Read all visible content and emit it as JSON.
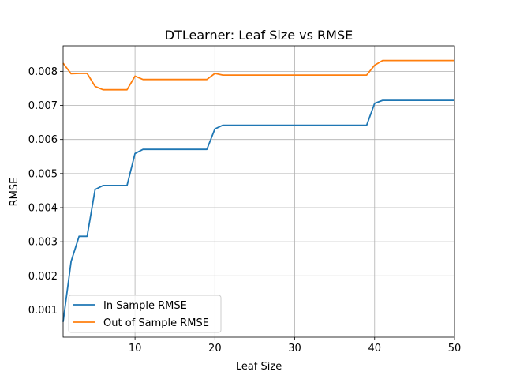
{
  "chart_data": {
    "type": "line",
    "title": "DTLearner: Leaf Size vs RMSE",
    "xlabel": "Leaf Size",
    "ylabel": "RMSE",
    "xlim": [
      1,
      50
    ],
    "ylim": [
      0.0002,
      0.00875
    ],
    "xticks": [
      10,
      20,
      30,
      40,
      50
    ],
    "yticks": [
      0.001,
      0.002,
      0.003,
      0.004,
      0.005,
      0.006,
      0.007,
      0.008
    ],
    "ytick_labels": [
      "0.001",
      "0.002",
      "0.003",
      "0.004",
      "0.005",
      "0.006",
      "0.007",
      "0.008"
    ],
    "grid": true,
    "legend_position": "lower-left",
    "x": [
      1,
      2,
      3,
      4,
      5,
      6,
      7,
      8,
      9,
      10,
      11,
      12,
      13,
      14,
      15,
      16,
      17,
      18,
      19,
      20,
      21,
      22,
      23,
      24,
      25,
      26,
      27,
      28,
      29,
      30,
      31,
      32,
      33,
      34,
      35,
      36,
      37,
      38,
      39,
      40,
      41,
      42,
      43,
      44,
      45,
      46,
      47,
      48,
      49,
      50
    ],
    "series": [
      {
        "name": "In Sample RMSE",
        "color": "#1f77b4",
        "values": [
          0.00065,
          0.00242,
          0.00316,
          0.00316,
          0.00453,
          0.00465,
          0.00465,
          0.00465,
          0.00465,
          0.00559,
          0.00571,
          0.00571,
          0.00571,
          0.00571,
          0.00571,
          0.00571,
          0.00571,
          0.00571,
          0.00571,
          0.00631,
          0.00642,
          0.00642,
          0.00642,
          0.00642,
          0.00642,
          0.00642,
          0.00642,
          0.00642,
          0.00642,
          0.00642,
          0.00642,
          0.00642,
          0.00642,
          0.00642,
          0.00642,
          0.00642,
          0.00642,
          0.00642,
          0.00642,
          0.00706,
          0.00715,
          0.00715,
          0.00715,
          0.00715,
          0.00715,
          0.00715,
          0.00715,
          0.00715,
          0.00715,
          0.00715
        ]
      },
      {
        "name": "Out of Sample RMSE",
        "color": "#ff7f0e",
        "values": [
          0.00824,
          0.00793,
          0.00794,
          0.00794,
          0.00756,
          0.00746,
          0.00746,
          0.00746,
          0.00746,
          0.00786,
          0.00776,
          0.00776,
          0.00776,
          0.00776,
          0.00776,
          0.00776,
          0.00776,
          0.00776,
          0.00776,
          0.00794,
          0.00789,
          0.00789,
          0.00789,
          0.00789,
          0.00789,
          0.00789,
          0.00789,
          0.00789,
          0.00789,
          0.00789,
          0.00789,
          0.00789,
          0.00789,
          0.00789,
          0.00789,
          0.00789,
          0.00789,
          0.00789,
          0.00789,
          0.00818,
          0.00832,
          0.00832,
          0.00832,
          0.00832,
          0.00832,
          0.00832,
          0.00832,
          0.00832,
          0.00832,
          0.00832
        ]
      }
    ]
  }
}
